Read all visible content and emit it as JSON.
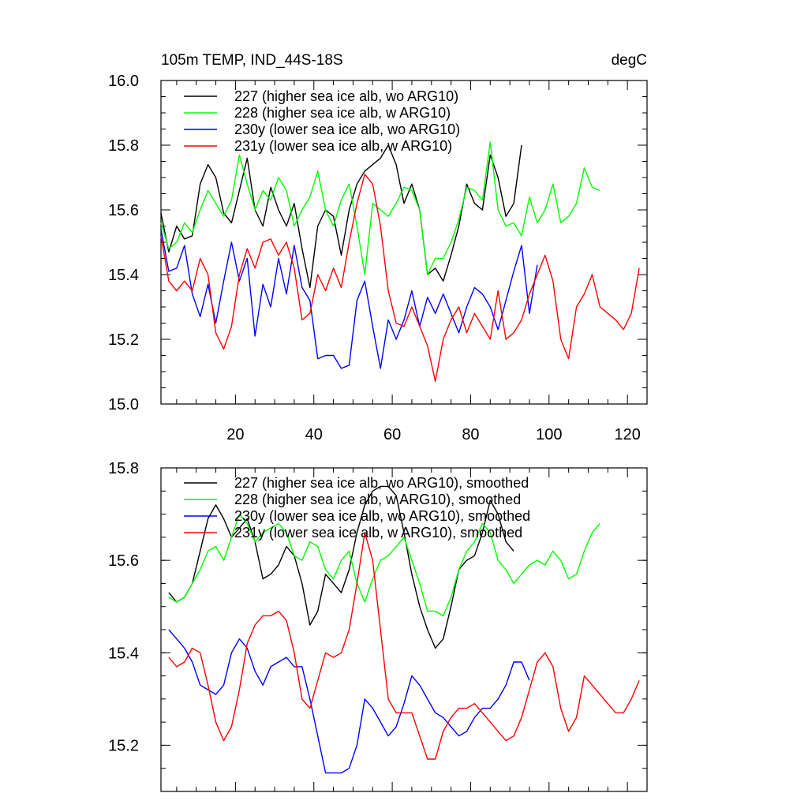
{
  "chart_data": [
    {
      "type": "line",
      "title": "105m TEMP, IND_44S-18S",
      "units": "degC",
      "xlim": [
        1,
        125
      ],
      "ylim": [
        15.0,
        16.0
      ],
      "xticks": [
        20,
        40,
        60,
        80,
        100,
        120
      ],
      "yticks": [
        15.0,
        15.2,
        15.4,
        15.6,
        15.8,
        16.0
      ],
      "ytick_labels": [
        "15.0",
        "15.2",
        "15.4",
        "15.6",
        "15.8",
        "16.0"
      ],
      "series": [
        {
          "name": "227 (higher sea ice alb, wo ARG10)",
          "color": "#000000",
          "x": [
            1,
            3,
            5,
            7,
            9,
            11,
            13,
            15,
            17,
            19,
            21,
            23,
            25,
            27,
            29,
            31,
            33,
            35,
            37,
            39,
            41,
            43,
            45,
            47,
            49,
            51,
            53,
            55,
            57,
            59,
            61,
            63,
            65,
            67,
            69,
            71,
            73,
            75,
            77,
            79,
            81,
            83,
            85,
            87,
            89,
            91,
            93
          ],
          "values": [
            15.59,
            15.47,
            15.55,
            15.51,
            15.52,
            15.68,
            15.74,
            15.7,
            15.59,
            15.56,
            15.66,
            15.76,
            15.6,
            15.55,
            15.67,
            15.6,
            15.55,
            15.62,
            15.48,
            15.36,
            15.55,
            15.6,
            15.58,
            15.46,
            15.6,
            15.68,
            15.72,
            15.74,
            15.76,
            15.8,
            15.74,
            15.62,
            15.68,
            15.6,
            15.4,
            15.42,
            15.38,
            15.46,
            15.55,
            15.68,
            15.62,
            15.6,
            15.77,
            15.7,
            15.58,
            15.62,
            15.8
          ]
        },
        {
          "name": "228 (higher sea ice alb, w ARG10)",
          "color": "#00ff00",
          "x": [
            1,
            3,
            5,
            7,
            9,
            11,
            13,
            15,
            17,
            19,
            21,
            23,
            25,
            27,
            29,
            31,
            33,
            35,
            37,
            39,
            41,
            43,
            45,
            47,
            49,
            51,
            53,
            55,
            57,
            59,
            61,
            63,
            65,
            67,
            69,
            71,
            73,
            75,
            77,
            79,
            81,
            83,
            85,
            87,
            89,
            91,
            93,
            95,
            97,
            99,
            101,
            103,
            105,
            107,
            109,
            111,
            113
          ],
          "values": [
            15.56,
            15.48,
            15.5,
            15.56,
            15.53,
            15.6,
            15.66,
            15.62,
            15.58,
            15.63,
            15.77,
            15.68,
            15.6,
            15.66,
            15.63,
            15.7,
            15.66,
            15.55,
            15.6,
            15.64,
            15.72,
            15.6,
            15.55,
            15.63,
            15.68,
            15.55,
            15.4,
            15.62,
            15.6,
            15.58,
            15.62,
            15.67,
            15.66,
            15.6,
            15.4,
            15.45,
            15.45,
            15.5,
            15.57,
            15.67,
            15.66,
            15.63,
            15.81,
            15.6,
            15.55,
            15.56,
            15.52,
            15.64,
            15.56,
            15.6,
            15.68,
            15.56,
            15.58,
            15.62,
            15.73,
            15.67,
            15.66
          ]
        },
        {
          "name": "230y (lower sea ice alb, wo ARG10)",
          "color": "#0000ff",
          "x": [
            1,
            3,
            5,
            7,
            9,
            11,
            13,
            15,
            17,
            19,
            21,
            23,
            25,
            27,
            29,
            31,
            33,
            35,
            37,
            39,
            41,
            43,
            45,
            47,
            49,
            51,
            53,
            55,
            57,
            59,
            61,
            63,
            65,
            67,
            69,
            71,
            73,
            75,
            77,
            79,
            81,
            83,
            85,
            87,
            89,
            91,
            93,
            95,
            97
          ],
          "values": [
            15.54,
            15.41,
            15.42,
            15.49,
            15.34,
            15.27,
            15.37,
            15.25,
            15.38,
            15.5,
            15.38,
            15.45,
            15.21,
            15.37,
            15.3,
            15.45,
            15.34,
            15.49,
            15.36,
            15.32,
            15.14,
            15.15,
            15.15,
            15.11,
            15.12,
            15.32,
            15.38,
            15.24,
            15.11,
            15.26,
            15.2,
            15.26,
            15.35,
            15.24,
            15.33,
            15.28,
            15.34,
            15.28,
            15.22,
            15.3,
            15.36,
            15.34,
            15.3,
            15.23,
            15.32,
            15.41,
            15.49,
            15.28,
            15.43
          ]
        },
        {
          "name": "231y (lower sea ice alb, w ARG10)",
          "color": "#ff0000",
          "x": [
            1,
            3,
            5,
            7,
            9,
            11,
            13,
            15,
            17,
            19,
            21,
            23,
            25,
            27,
            29,
            31,
            33,
            35,
            37,
            39,
            41,
            43,
            45,
            47,
            49,
            51,
            53,
            55,
            57,
            59,
            61,
            63,
            65,
            67,
            69,
            71,
            73,
            75,
            77,
            79,
            81,
            83,
            85,
            87,
            89,
            91,
            93,
            95,
            97,
            99,
            101,
            103,
            105,
            107,
            109,
            111,
            113,
            115,
            117,
            119,
            121,
            123
          ],
          "values": [
            15.52,
            15.38,
            15.35,
            15.38,
            15.35,
            15.45,
            15.4,
            15.22,
            15.17,
            15.24,
            15.4,
            15.48,
            15.42,
            15.5,
            15.51,
            15.46,
            15.5,
            15.42,
            15.26,
            15.28,
            15.4,
            15.35,
            15.42,
            15.36,
            15.5,
            15.62,
            15.71,
            15.68,
            15.55,
            15.35,
            15.25,
            15.24,
            15.3,
            15.24,
            15.18,
            15.07,
            15.2,
            15.26,
            15.3,
            15.22,
            15.28,
            15.24,
            15.2,
            15.35,
            15.2,
            15.22,
            15.26,
            15.34,
            15.4,
            15.46,
            15.38,
            15.2,
            15.14,
            15.3,
            15.34,
            15.4,
            15.3,
            15.28,
            15.26,
            15.23,
            15.28,
            15.42
          ]
        }
      ]
    },
    {
      "type": "line",
      "title": "",
      "xlim": [
        1,
        125
      ],
      "ylim": [
        15.1,
        15.8
      ],
      "xticks": [
        20,
        40,
        60,
        80,
        100,
        120
      ],
      "yticks": [
        15.2,
        15.4,
        15.6,
        15.8
      ],
      "ytick_labels": [
        "15.2",
        "15.4",
        "15.6",
        "15.8"
      ],
      "series": [
        {
          "name": "227 (higher sea ice alb, wo ARG10), smoothed",
          "color": "#000000",
          "x": [
            3,
            5,
            7,
            9,
            11,
            13,
            15,
            17,
            19,
            21,
            23,
            25,
            27,
            29,
            31,
            33,
            35,
            37,
            39,
            41,
            43,
            45,
            47,
            49,
            51,
            53,
            55,
            57,
            59,
            61,
            63,
            65,
            67,
            69,
            71,
            73,
            75,
            77,
            79,
            81,
            83,
            85,
            87,
            89,
            91
          ],
          "values": [
            15.53,
            15.51,
            15.52,
            15.55,
            15.62,
            15.69,
            15.72,
            15.69,
            15.65,
            15.67,
            15.69,
            15.64,
            15.56,
            15.57,
            15.59,
            15.63,
            15.61,
            15.55,
            15.46,
            15.49,
            15.57,
            15.55,
            15.53,
            15.58,
            15.66,
            15.72,
            15.75,
            15.76,
            15.76,
            15.74,
            15.66,
            15.57,
            15.5,
            15.45,
            15.41,
            15.43,
            15.5,
            15.58,
            15.6,
            15.61,
            15.66,
            15.73,
            15.7,
            15.64,
            15.62
          ]
        },
        {
          "name": "228 (higher sea ice alb, w ARG10), smoothed",
          "color": "#00ff00",
          "x": [
            3,
            5,
            7,
            9,
            11,
            13,
            15,
            17,
            19,
            21,
            23,
            25,
            27,
            29,
            31,
            33,
            35,
            37,
            39,
            41,
            43,
            45,
            47,
            49,
            51,
            53,
            55,
            57,
            59,
            61,
            63,
            65,
            67,
            69,
            71,
            73,
            75,
            77,
            79,
            81,
            83,
            85,
            87,
            89,
            91,
            93,
            95,
            97,
            99,
            101,
            103,
            105,
            107,
            109,
            111,
            113
          ],
          "values": [
            15.52,
            15.51,
            15.52,
            15.55,
            15.58,
            15.62,
            15.63,
            15.6,
            15.65,
            15.7,
            15.68,
            15.64,
            15.66,
            15.67,
            15.68,
            15.66,
            15.61,
            15.6,
            15.64,
            15.63,
            15.58,
            15.56,
            15.6,
            15.62,
            15.55,
            15.51,
            15.56,
            15.6,
            15.61,
            15.63,
            15.65,
            15.6,
            15.55,
            15.49,
            15.49,
            15.48,
            15.52,
            15.58,
            15.62,
            15.64,
            15.68,
            15.66,
            15.6,
            15.58,
            15.55,
            15.57,
            15.59,
            15.6,
            15.59,
            15.62,
            15.6,
            15.56,
            15.57,
            15.62,
            15.66,
            15.68
          ]
        },
        {
          "name": "230y (lower sea ice alb, wo ARG10), smoothed",
          "color": "#0000ff",
          "x": [
            3,
            5,
            7,
            9,
            11,
            13,
            15,
            17,
            19,
            21,
            23,
            25,
            27,
            29,
            31,
            33,
            35,
            37,
            39,
            41,
            43,
            45,
            47,
            49,
            51,
            53,
            55,
            57,
            59,
            61,
            63,
            65,
            67,
            69,
            71,
            73,
            75,
            77,
            79,
            81,
            83,
            85,
            87,
            89,
            91,
            93,
            95
          ],
          "values": [
            15.45,
            15.43,
            15.41,
            15.38,
            15.33,
            15.32,
            15.31,
            15.33,
            15.4,
            15.43,
            15.41,
            15.36,
            15.33,
            15.37,
            15.38,
            15.39,
            15.37,
            15.37,
            15.3,
            15.22,
            15.14,
            15.14,
            15.14,
            15.15,
            15.2,
            15.3,
            15.28,
            15.25,
            15.22,
            15.24,
            15.29,
            15.35,
            15.33,
            15.3,
            15.27,
            15.26,
            15.24,
            15.22,
            15.23,
            15.26,
            15.28,
            15.28,
            15.3,
            15.33,
            15.38,
            15.38,
            15.34
          ]
        },
        {
          "name": "231y (lower sea ice alb, w ARG10), smoothed",
          "color": "#ff0000",
          "x": [
            3,
            5,
            7,
            9,
            11,
            13,
            15,
            17,
            19,
            21,
            23,
            25,
            27,
            29,
            31,
            33,
            35,
            37,
            39,
            41,
            43,
            45,
            47,
            49,
            51,
            53,
            55,
            57,
            59,
            61,
            63,
            65,
            67,
            69,
            71,
            73,
            75,
            77,
            79,
            81,
            83,
            85,
            87,
            89,
            91,
            93,
            95,
            97,
            99,
            101,
            103,
            105,
            107,
            109,
            111,
            113,
            115,
            117,
            119,
            121,
            123
          ],
          "values": [
            15.39,
            15.37,
            15.38,
            15.41,
            15.4,
            15.33,
            15.25,
            15.21,
            15.24,
            15.32,
            15.42,
            15.46,
            15.48,
            15.48,
            15.49,
            15.47,
            15.4,
            15.3,
            15.28,
            15.34,
            15.4,
            15.39,
            15.4,
            15.45,
            15.55,
            15.66,
            15.6,
            15.45,
            15.3,
            15.27,
            15.27,
            15.27,
            15.22,
            15.17,
            15.17,
            15.23,
            15.26,
            15.28,
            15.28,
            15.29,
            15.27,
            15.25,
            15.23,
            15.21,
            15.22,
            15.26,
            15.32,
            15.38,
            15.4,
            15.37,
            15.28,
            15.23,
            15.26,
            15.35,
            15.33,
            15.31,
            15.29,
            15.27,
            15.27,
            15.3,
            15.34
          ]
        }
      ]
    }
  ]
}
